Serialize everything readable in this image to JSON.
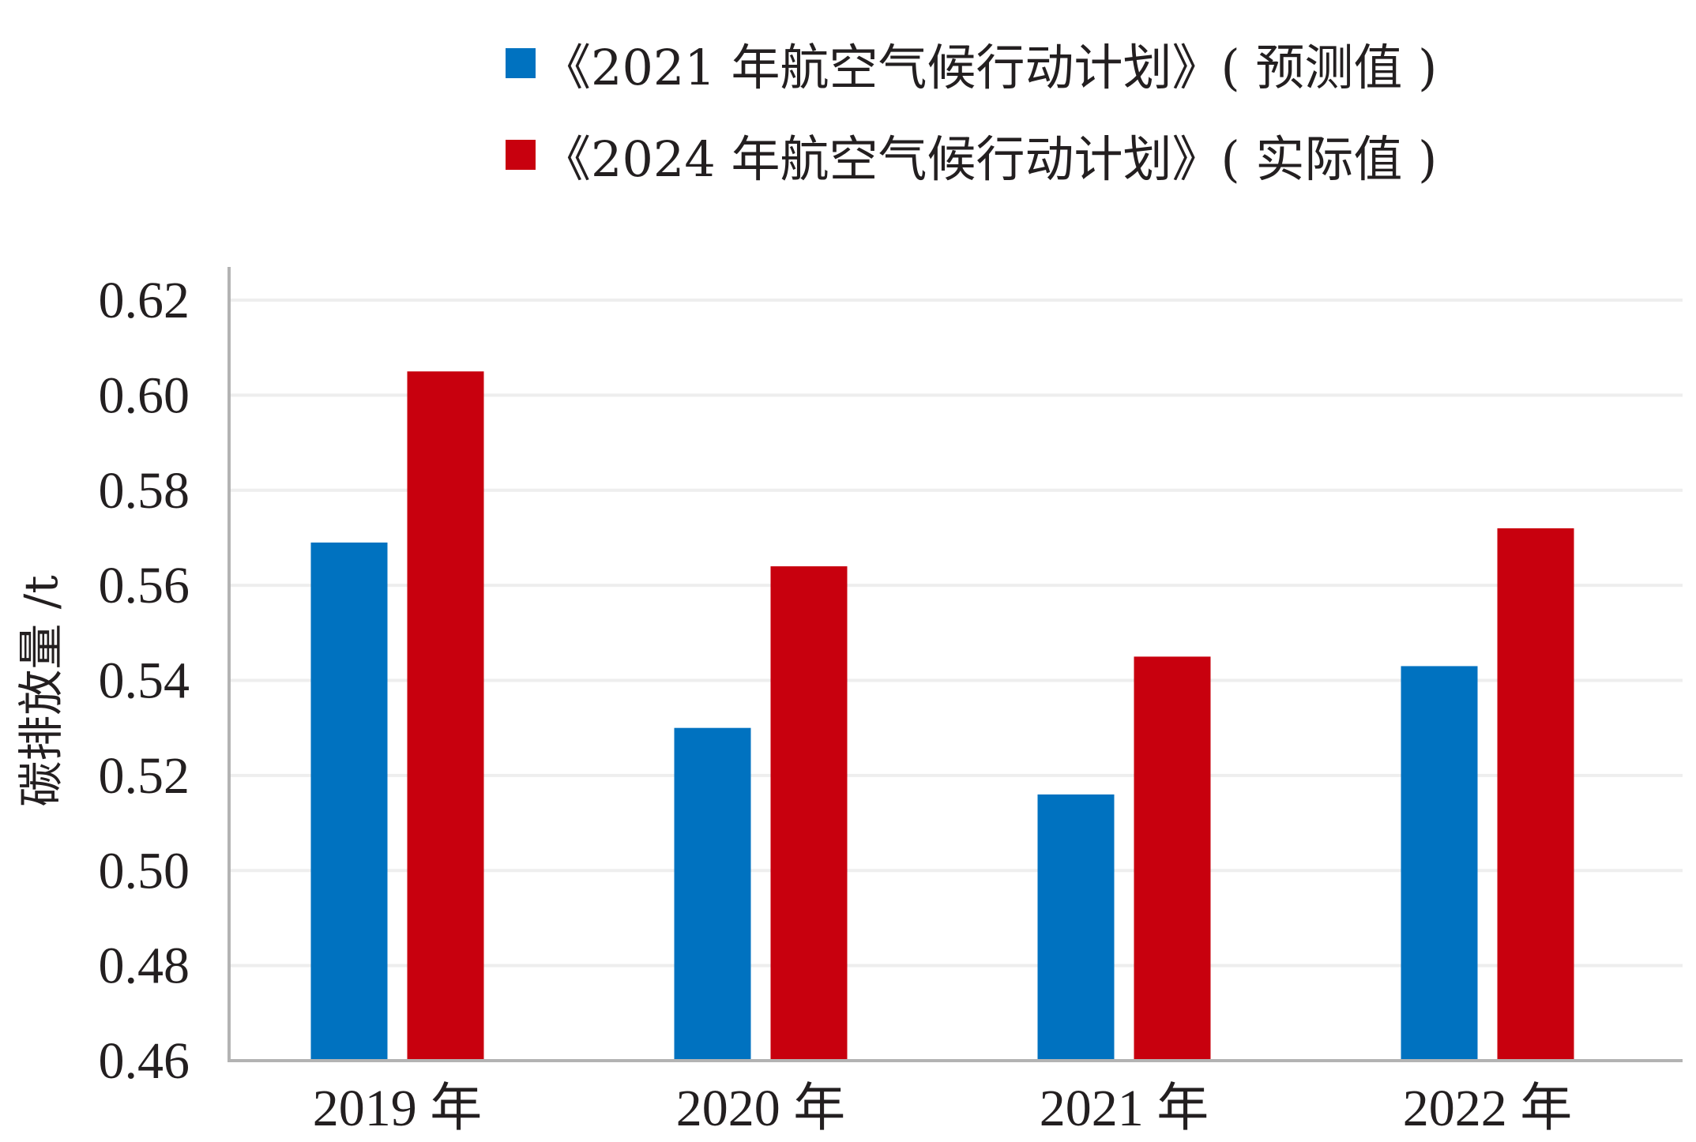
{
  "chart_data": {
    "type": "bar",
    "title": "",
    "xlabel": "",
    "ylabel": "碳排放量 /t",
    "categories": [
      "2019 年",
      "2020 年",
      "2021 年",
      "2022 年"
    ],
    "series": [
      {
        "name": "《2021 年航空气候行动计划》( 预测值 )",
        "color": "#0072c0",
        "values": [
          0.569,
          0.53,
          0.516,
          0.543
        ]
      },
      {
        "name": "《2024 年航空气候行动计划》( 实际值 )",
        "color": "#c8000e",
        "values": [
          0.605,
          0.564,
          0.545,
          0.572
        ]
      }
    ],
    "ylim": [
      0.46,
      0.62
    ],
    "yticks": [
      "0.46",
      "0.48",
      "0.50",
      "0.52",
      "0.54",
      "0.56",
      "0.58",
      "0.60",
      "0.62"
    ],
    "grid": true,
    "legend_position": "top"
  }
}
